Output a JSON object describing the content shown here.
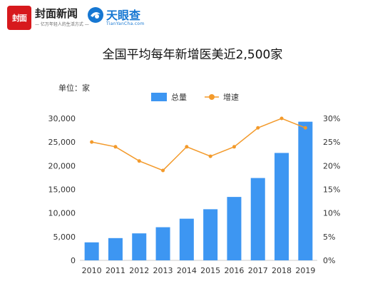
{
  "header": {
    "logo1_text": "封面",
    "logo1_name": "封面新闻",
    "logo1_slogan": "亿万年轻人的生活方式",
    "logo2_name": "天眼查",
    "logo2_sub": "TianYanCha.com",
    "brand_red": "#d7191d",
    "brand_blue": "#1677d2"
  },
  "unit_label": "单位：家",
  "chart_data": {
    "type": "bar",
    "title": "全国平均每年新增医美近2,500家",
    "categories": [
      "2010",
      "2011",
      "2012",
      "2013",
      "2014",
      "2015",
      "2016",
      "2017",
      "2018",
      "2019"
    ],
    "series": [
      {
        "name": "总量",
        "type": "bar",
        "axis": "left",
        "color": "#3d96f2",
        "values": [
          3800,
          4700,
          5700,
          7000,
          8800,
          10800,
          13400,
          17400,
          22700,
          29300
        ]
      },
      {
        "name": "增速",
        "type": "line",
        "axis": "right",
        "color": "#f39a2b",
        "values": [
          25,
          24,
          21,
          19,
          24,
          22,
          24,
          28,
          30,
          28
        ]
      }
    ],
    "ylim_left": [
      0,
      30000
    ],
    "yticks_left": [
      "0",
      "5,000",
      "10,000",
      "15,000",
      "20,000",
      "25,000",
      "30,000"
    ],
    "ylim_right": [
      0,
      30
    ],
    "yticks_right": [
      "0%",
      "5%",
      "10%",
      "15%",
      "20%",
      "25%",
      "30%"
    ],
    "legend_position": "top-center",
    "grid": false
  }
}
